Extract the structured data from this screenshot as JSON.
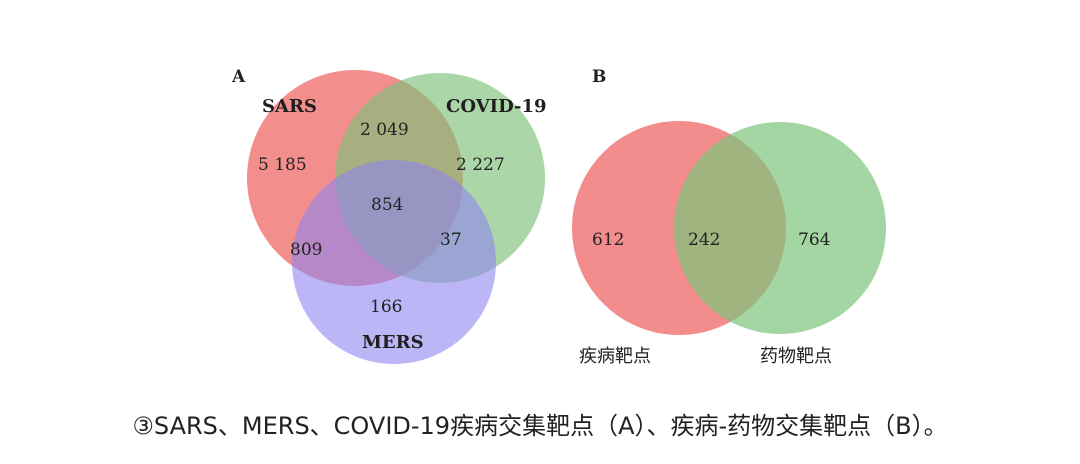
{
  "panel_a": {
    "label": "A",
    "sets": [
      {
        "name": "SARS",
        "color": "#f07a78"
      },
      {
        "name": "COVID-19",
        "color": "#7ec07a"
      },
      {
        "name": "MERS",
        "color": "#8f84f0"
      }
    ],
    "regions": {
      "sars_only": "5 185",
      "covid_only": "2 227",
      "mers_only": "166",
      "sars_covid": "2 049",
      "sars_mers": "809",
      "covid_mers": "37",
      "all_three": "854"
    }
  },
  "panel_b": {
    "label": "B",
    "sets": [
      {
        "name": "疾病靶点",
        "color": "#f27f80"
      },
      {
        "name": "药物靶点",
        "color": "#7cc47a"
      }
    ],
    "regions": {
      "left_only": "612",
      "intersection": "242",
      "right_only": "764"
    }
  },
  "caption": "③SARS、MERS、COVID-19疾病交集靶点（A）、疾病-药物交集靶点（B）。"
}
